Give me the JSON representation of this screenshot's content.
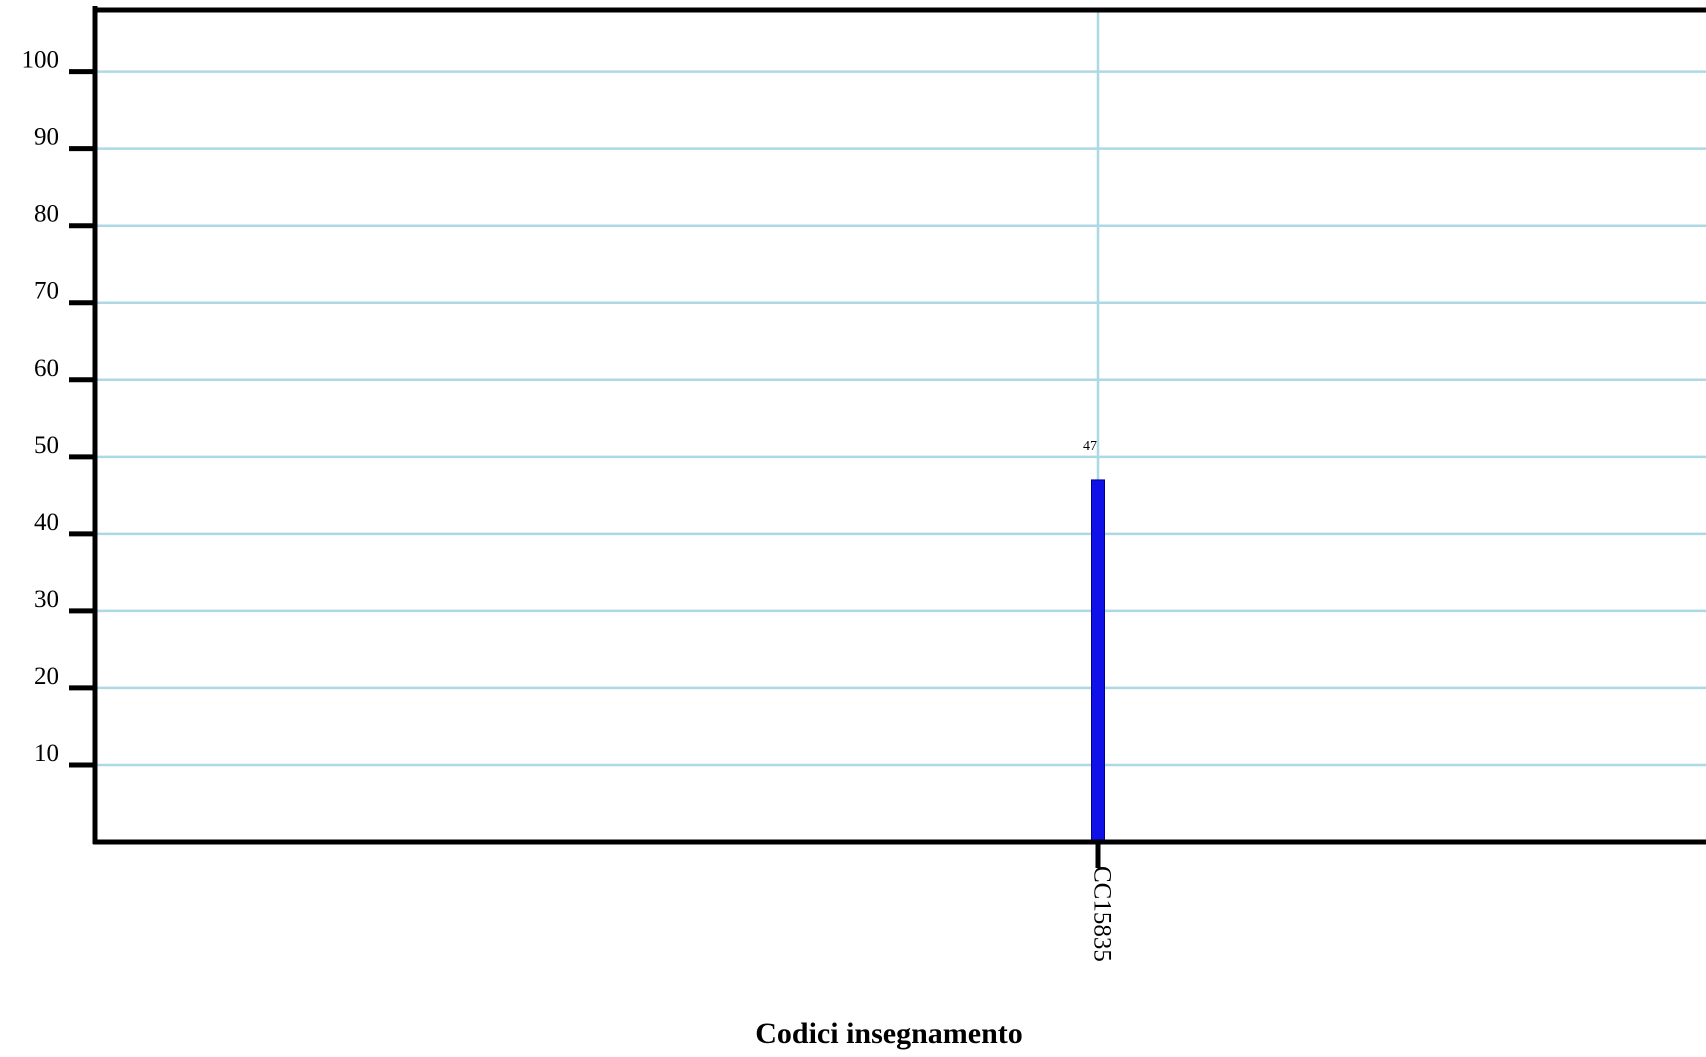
{
  "chart_data": {
    "type": "bar",
    "title": "",
    "xlabel": "Codici insegnamento",
    "ylabel": "",
    "categories": [
      "CC15835"
    ],
    "values": [
      47
    ],
    "ylim": [
      0,
      108
    ],
    "yticks": [
      10,
      20,
      30,
      40,
      50,
      60,
      70,
      80,
      90,
      100
    ],
    "grid": true,
    "legend": "none",
    "colors": {
      "bar": "#1010e8",
      "grid": "#add8e6",
      "axis": "#000000"
    }
  }
}
